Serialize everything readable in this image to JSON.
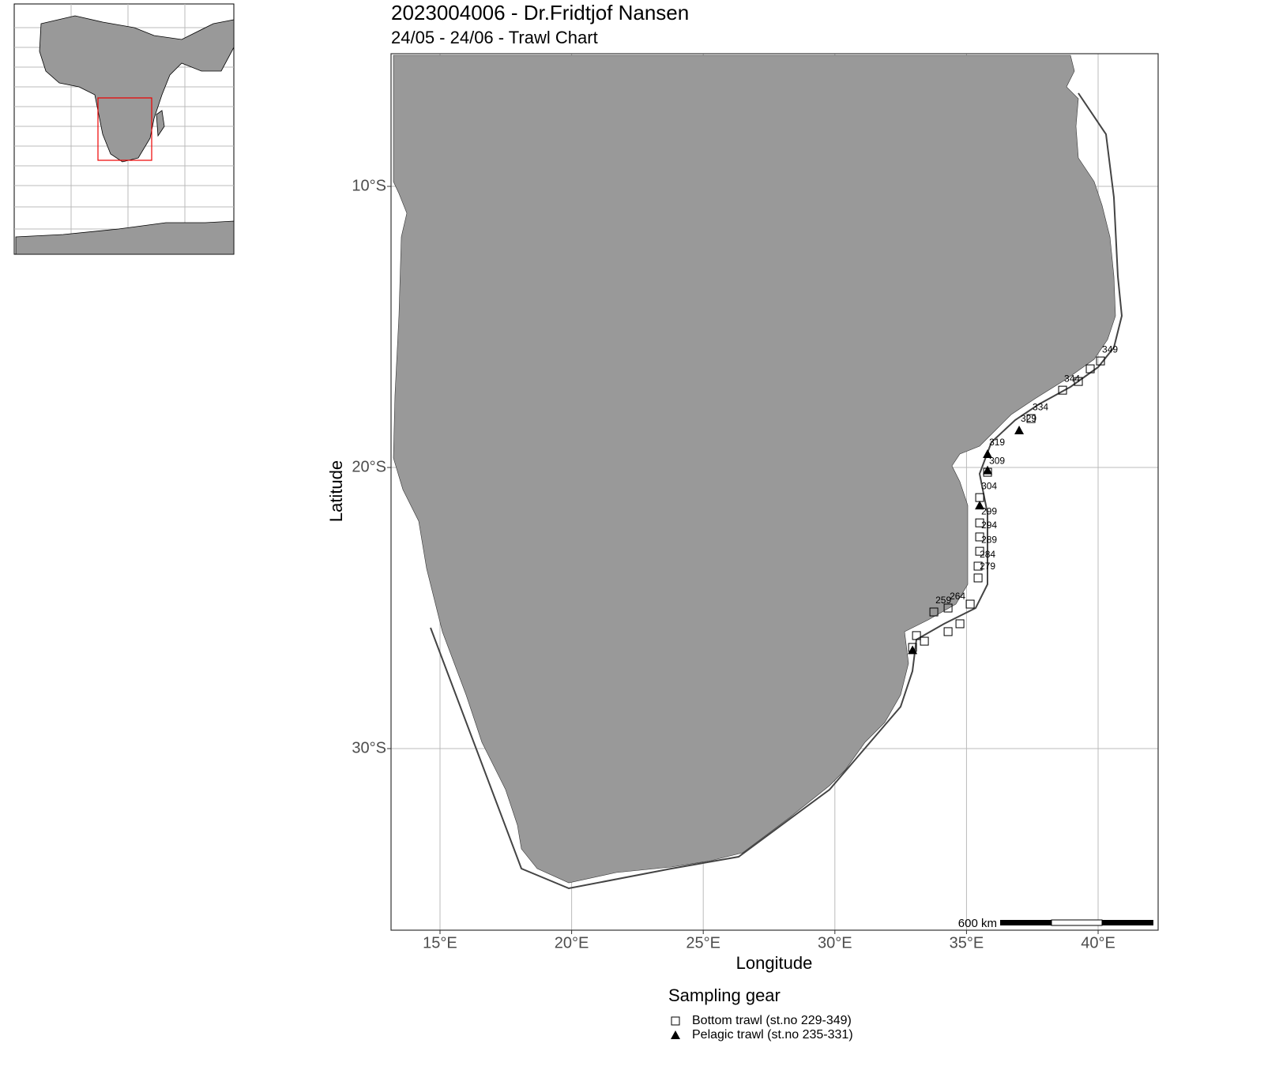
{
  "map": {
    "title": "2023004006 - Dr.Fridtjof Nansen",
    "subtitle": "24/05 - 24/06   -  Trawl Chart",
    "xlabel": "Longitude",
    "ylabel": "Latitude",
    "xlim": [
      13.14,
      42.28
    ],
    "ylim": [
      -36.46,
      -5.28
    ],
    "xticks": [
      {
        "value": 15,
        "label": "15°E"
      },
      {
        "value": 20,
        "label": "20°E"
      },
      {
        "value": 25,
        "label": "25°E"
      },
      {
        "value": 30,
        "label": "30°E"
      },
      {
        "value": 35,
        "label": "35°E"
      },
      {
        "value": 40,
        "label": "40°E"
      }
    ],
    "yticks": [
      {
        "value": -10,
        "label": "10°S"
      },
      {
        "value": -20,
        "label": "20°S"
      },
      {
        "value": -30,
        "label": "30°S"
      }
    ],
    "grid": true,
    "scale_label": "600 km",
    "legend_title": "Sampling gear",
    "series": [
      {
        "name": "Bottom trawl (st.no 229-349)",
        "marker": "square",
        "stations": [
          {
            "label": "349",
            "lon": 40.09,
            "lat": -16.21
          },
          {
            "label": null,
            "lon": 39.7,
            "lat": -16.49
          },
          {
            "label": null,
            "lon": 39.25,
            "lat": -16.94
          },
          {
            "label": "344",
            "lon": 38.65,
            "lat": -17.25
          },
          {
            "label": "334",
            "lon": 37.45,
            "lat": -18.26
          },
          {
            "label": "309",
            "lon": 35.8,
            "lat": -20.17
          },
          {
            "label": "304",
            "lon": 35.5,
            "lat": -21.07
          },
          {
            "label": "299",
            "lon": 35.5,
            "lat": -21.97
          },
          {
            "label": "294",
            "lon": 35.5,
            "lat": -22.47
          },
          {
            "label": "289",
            "lon": 35.5,
            "lat": -22.98
          },
          {
            "label": "284",
            "lon": 35.44,
            "lat": -23.51
          },
          {
            "label": "279",
            "lon": 35.44,
            "lat": -23.93
          },
          {
            "label": null,
            "lon": 35.14,
            "lat": -24.86
          },
          {
            "label": "264",
            "lon": 34.3,
            "lat": -25.0
          },
          {
            "label": "259",
            "lon": 33.76,
            "lat": -25.14
          },
          {
            "label": null,
            "lon": 34.75,
            "lat": -25.56
          },
          {
            "label": null,
            "lon": 34.3,
            "lat": -25.84
          },
          {
            "label": null,
            "lon": 33.4,
            "lat": -26.18
          },
          {
            "label": null,
            "lon": 33.1,
            "lat": -25.98
          },
          {
            "label": null,
            "lon": 32.95,
            "lat": -26.4
          }
        ]
      },
      {
        "name": "Pelagic trawl (st.no 235-331)",
        "marker": "triangle",
        "stations": [
          {
            "label": "329",
            "lon": 37.0,
            "lat": -18.68
          },
          {
            "label": "319",
            "lon": 35.8,
            "lat": -19.52
          },
          {
            "label": null,
            "lon": 35.8,
            "lat": -20.1
          },
          {
            "label": null,
            "lon": 35.5,
            "lat": -21.35
          },
          {
            "label": null,
            "lon": 32.95,
            "lat": -26.5
          }
        ]
      }
    ]
  }
}
